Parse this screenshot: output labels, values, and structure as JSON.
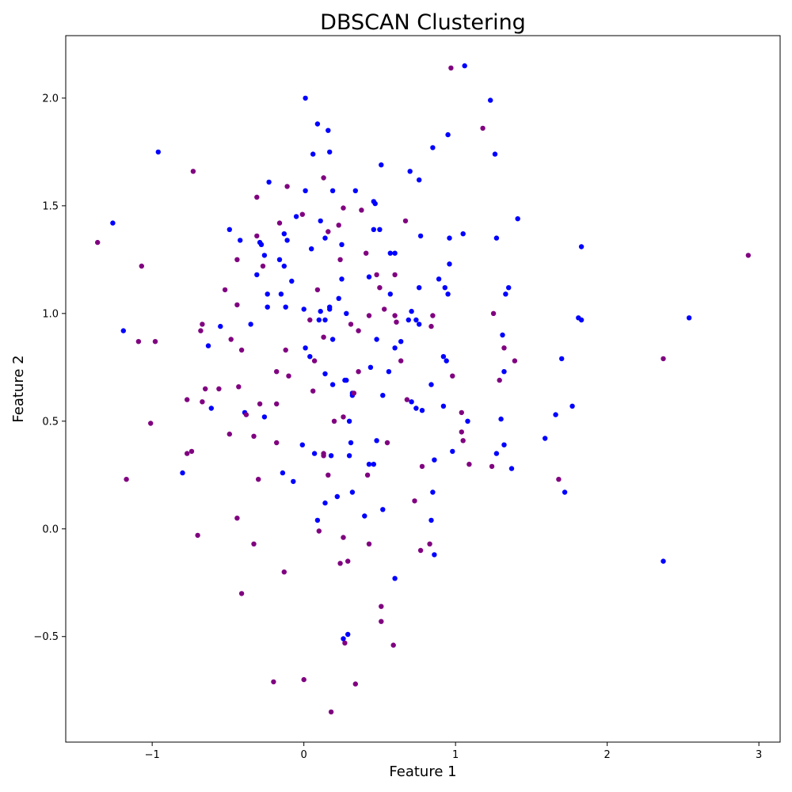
{
  "chart_data": {
    "type": "scatter",
    "title": "DBSCAN Clustering",
    "xlabel": "Feature 1",
    "ylabel": "Feature 2",
    "xlim": [
      -1.57,
      3.14
    ],
    "ylim": [
      -0.99,
      2.29
    ],
    "xticks": [
      {
        "value": -1,
        "label": "−1"
      },
      {
        "value": 0,
        "label": "0"
      },
      {
        "value": 1,
        "label": "1"
      },
      {
        "value": 2,
        "label": "2"
      },
      {
        "value": 3,
        "label": "3"
      }
    ],
    "yticks": [
      {
        "value": -0.5,
        "label": "−0.5"
      },
      {
        "value": 0.0,
        "label": "0.0"
      },
      {
        "value": 0.5,
        "label": "0.5"
      },
      {
        "value": 1.0,
        "label": "1.0"
      },
      {
        "value": 1.5,
        "label": "1.5"
      },
      {
        "value": 2.0,
        "label": "2.0"
      }
    ],
    "grid": false,
    "legend": false,
    "series": [
      {
        "color": "#0000ff",
        "points": [
          [
            1.06,
            2.15
          ],
          [
            0.01,
            2.0
          ],
          [
            1.23,
            1.99
          ],
          [
            0.09,
            1.88
          ],
          [
            0.16,
            1.85
          ],
          [
            0.95,
            1.83
          ],
          [
            0.85,
            1.77
          ],
          [
            -0.96,
            1.75
          ],
          [
            0.06,
            1.74
          ],
          [
            0.17,
            1.75
          ],
          [
            1.26,
            1.74
          ],
          [
            0.51,
            1.69
          ],
          [
            0.7,
            1.66
          ],
          [
            0.76,
            1.62
          ],
          [
            -0.23,
            1.61
          ],
          [
            0.01,
            1.57
          ],
          [
            0.19,
            1.57
          ],
          [
            0.34,
            1.57
          ],
          [
            0.46,
            1.52
          ],
          [
            0.47,
            1.51
          ],
          [
            -0.05,
            1.45
          ],
          [
            1.41,
            1.44
          ],
          [
            -1.26,
            1.42
          ],
          [
            0.11,
            1.43
          ],
          [
            -0.49,
            1.39
          ],
          [
            0.46,
            1.39
          ],
          [
            0.5,
            1.39
          ],
          [
            -0.13,
            1.37
          ],
          [
            1.05,
            1.37
          ],
          [
            0.77,
            1.36
          ],
          [
            0.14,
            1.35
          ],
          [
            0.96,
            1.35
          ],
          [
            1.27,
            1.35
          ],
          [
            -0.42,
            1.34
          ],
          [
            -0.11,
            1.34
          ],
          [
            -0.29,
            1.33
          ],
          [
            -0.28,
            1.32
          ],
          [
            0.25,
            1.32
          ],
          [
            1.83,
            1.31
          ],
          [
            0.05,
            1.3
          ],
          [
            0.57,
            1.28
          ],
          [
            0.6,
            1.28
          ],
          [
            -0.26,
            1.27
          ],
          [
            -0.16,
            1.25
          ],
          [
            0.96,
            1.23
          ],
          [
            -0.13,
            1.22
          ],
          [
            -0.31,
            1.18
          ],
          [
            0.43,
            1.17
          ],
          [
            0.25,
            1.16
          ],
          [
            0.89,
            1.16
          ],
          [
            -0.08,
            1.15
          ],
          [
            1.35,
            1.12
          ],
          [
            0.93,
            1.12
          ],
          [
            0.76,
            1.12
          ],
          [
            -0.24,
            1.09
          ],
          [
            -0.15,
            1.09
          ],
          [
            0.57,
            1.09
          ],
          [
            0.95,
            1.09
          ],
          [
            1.33,
            1.09
          ],
          [
            0.23,
            1.07
          ],
          [
            -0.24,
            1.03
          ],
          [
            -0.12,
            1.03
          ],
          [
            0.17,
            1.03
          ],
          [
            0.17,
            1.02
          ],
          [
            0.0,
            1.02
          ],
          [
            0.11,
            1.01
          ],
          [
            0.71,
            1.01
          ],
          [
            0.28,
            1.0
          ],
          [
            2.54,
            0.98
          ],
          [
            1.81,
            0.98
          ],
          [
            1.83,
            0.97
          ],
          [
            0.1,
            0.97
          ],
          [
            0.14,
            0.97
          ],
          [
            0.69,
            0.97
          ],
          [
            0.74,
            0.97
          ],
          [
            0.76,
            0.95
          ],
          [
            -0.35,
            0.95
          ],
          [
            -0.55,
            0.94
          ],
          [
            -1.19,
            0.92
          ],
          [
            1.31,
            0.9
          ],
          [
            0.48,
            0.88
          ],
          [
            0.19,
            0.88
          ],
          [
            0.64,
            0.87
          ],
          [
            -0.63,
            0.85
          ],
          [
            0.6,
            0.84
          ],
          [
            0.01,
            0.84
          ],
          [
            0.04,
            0.8
          ],
          [
            0.92,
            0.8
          ],
          [
            0.94,
            0.78
          ],
          [
            1.7,
            0.79
          ],
          [
            0.44,
            0.75
          ],
          [
            0.56,
            0.73
          ],
          [
            0.14,
            0.72
          ],
          [
            1.32,
            0.73
          ],
          [
            0.27,
            0.69
          ],
          [
            0.28,
            0.69
          ],
          [
            0.19,
            0.67
          ],
          [
            0.84,
            0.67
          ],
          [
            0.32,
            0.63
          ],
          [
            0.32,
            0.62
          ],
          [
            0.52,
            0.62
          ],
          [
            0.71,
            0.59
          ],
          [
            0.74,
            0.56
          ],
          [
            1.77,
            0.57
          ],
          [
            0.92,
            0.57
          ],
          [
            0.78,
            0.55
          ],
          [
            -0.61,
            0.56
          ],
          [
            -0.39,
            0.54
          ],
          [
            1.66,
            0.53
          ],
          [
            -0.26,
            0.52
          ],
          [
            1.3,
            0.51
          ],
          [
            1.08,
            0.5
          ],
          [
            0.3,
            0.5
          ],
          [
            0.48,
            0.41
          ],
          [
            1.59,
            0.42
          ],
          [
            0.31,
            0.4
          ],
          [
            1.32,
            0.39
          ],
          [
            -0.01,
            0.39
          ],
          [
            0.98,
            0.36
          ],
          [
            0.07,
            0.35
          ],
          [
            0.18,
            0.34
          ],
          [
            0.3,
            0.34
          ],
          [
            1.27,
            0.35
          ],
          [
            0.86,
            0.32
          ],
          [
            0.43,
            0.3
          ],
          [
            0.46,
            0.3
          ],
          [
            1.37,
            0.28
          ],
          [
            -0.8,
            0.26
          ],
          [
            -0.14,
            0.26
          ],
          [
            -0.07,
            0.22
          ],
          [
            0.32,
            0.17
          ],
          [
            0.85,
            0.17
          ],
          [
            1.72,
            0.17
          ],
          [
            0.22,
            0.15
          ],
          [
            0.14,
            0.12
          ],
          [
            0.52,
            0.09
          ],
          [
            0.4,
            0.06
          ],
          [
            0.09,
            0.04
          ],
          [
            0.84,
            0.04
          ],
          [
            0.86,
            -0.12
          ],
          [
            2.37,
            -0.15
          ],
          [
            0.6,
            -0.23
          ],
          [
            0.29,
            -0.49
          ],
          [
            0.26,
            -0.51
          ]
        ]
      },
      {
        "color": "#800080",
        "points": [
          [
            0.97,
            2.14
          ],
          [
            1.18,
            1.86
          ],
          [
            -0.73,
            1.66
          ],
          [
            0.13,
            1.63
          ],
          [
            -0.11,
            1.59
          ],
          [
            -0.31,
            1.54
          ],
          [
            0.26,
            1.49
          ],
          [
            0.38,
            1.48
          ],
          [
            -0.01,
            1.46
          ],
          [
            0.67,
            1.43
          ],
          [
            -0.16,
            1.42
          ],
          [
            0.23,
            1.41
          ],
          [
            0.16,
            1.38
          ],
          [
            -0.31,
            1.36
          ],
          [
            -1.36,
            1.33
          ],
          [
            2.93,
            1.27
          ],
          [
            0.41,
            1.28
          ],
          [
            -0.44,
            1.25
          ],
          [
            0.24,
            1.25
          ],
          [
            -1.07,
            1.22
          ],
          [
            -0.27,
            1.22
          ],
          [
            0.48,
            1.18
          ],
          [
            0.6,
            1.18
          ],
          [
            0.5,
            1.12
          ],
          [
            -0.52,
            1.11
          ],
          [
            0.09,
            1.11
          ],
          [
            -0.44,
            1.04
          ],
          [
            0.53,
            1.02
          ],
          [
            1.25,
            1.0
          ],
          [
            0.85,
            0.99
          ],
          [
            0.43,
            0.99
          ],
          [
            0.6,
            0.99
          ],
          [
            0.04,
            0.97
          ],
          [
            0.61,
            0.96
          ],
          [
            -0.67,
            0.95
          ],
          [
            0.84,
            0.94
          ],
          [
            0.31,
            0.95
          ],
          [
            -0.68,
            0.92
          ],
          [
            0.36,
            0.92
          ],
          [
            0.13,
            0.89
          ],
          [
            -0.48,
            0.88
          ],
          [
            -1.09,
            0.87
          ],
          [
            -0.98,
            0.87
          ],
          [
            0.33,
            0.63
          ],
          [
            -0.41,
            0.83
          ],
          [
            -0.12,
            0.83
          ],
          [
            1.32,
            0.84
          ],
          [
            2.37,
            0.79
          ],
          [
            1.39,
            0.78
          ],
          [
            0.07,
            0.78
          ],
          [
            0.64,
            0.78
          ],
          [
            -0.18,
            0.73
          ],
          [
            0.36,
            0.73
          ],
          [
            0.98,
            0.71
          ],
          [
            -0.1,
            0.71
          ],
          [
            1.29,
            0.69
          ],
          [
            -0.43,
            0.66
          ],
          [
            -0.56,
            0.65
          ],
          [
            -0.65,
            0.65
          ],
          [
            0.06,
            0.64
          ],
          [
            0.68,
            0.6
          ],
          [
            -0.77,
            0.6
          ],
          [
            -0.67,
            0.59
          ],
          [
            -0.18,
            0.58
          ],
          [
            -0.29,
            0.58
          ],
          [
            1.04,
            0.54
          ],
          [
            -0.38,
            0.53
          ],
          [
            0.26,
            0.52
          ],
          [
            0.2,
            0.5
          ],
          [
            -1.01,
            0.49
          ],
          [
            -0.49,
            0.44
          ],
          [
            1.04,
            0.45
          ],
          [
            -0.33,
            0.43
          ],
          [
            1.05,
            0.41
          ],
          [
            -0.18,
            0.4
          ],
          [
            0.55,
            0.4
          ],
          [
            -0.74,
            0.36
          ],
          [
            -0.77,
            0.35
          ],
          [
            0.13,
            0.35
          ],
          [
            0.13,
            0.34
          ],
          [
            1.09,
            0.3
          ],
          [
            0.78,
            0.29
          ],
          [
            1.24,
            0.29
          ],
          [
            0.16,
            0.25
          ],
          [
            0.42,
            0.25
          ],
          [
            -1.17,
            0.23
          ],
          [
            -0.3,
            0.23
          ],
          [
            1.68,
            0.23
          ],
          [
            0.73,
            0.13
          ],
          [
            -0.44,
            0.05
          ],
          [
            0.1,
            -0.01
          ],
          [
            -0.7,
            -0.03
          ],
          [
            0.26,
            -0.04
          ],
          [
            -0.33,
            -0.07
          ],
          [
            0.43,
            -0.07
          ],
          [
            0.83,
            -0.07
          ],
          [
            0.77,
            -0.1
          ],
          [
            0.29,
            -0.15
          ],
          [
            0.24,
            -0.16
          ],
          [
            -0.13,
            -0.2
          ],
          [
            -0.41,
            -0.3
          ],
          [
            0.51,
            -0.36
          ],
          [
            0.51,
            -0.43
          ],
          [
            0.27,
            -0.53
          ],
          [
            0.59,
            -0.54
          ],
          [
            0.0,
            -0.7
          ],
          [
            -0.2,
            -0.71
          ],
          [
            0.34,
            -0.72
          ],
          [
            0.18,
            -0.85
          ]
        ]
      }
    ]
  }
}
